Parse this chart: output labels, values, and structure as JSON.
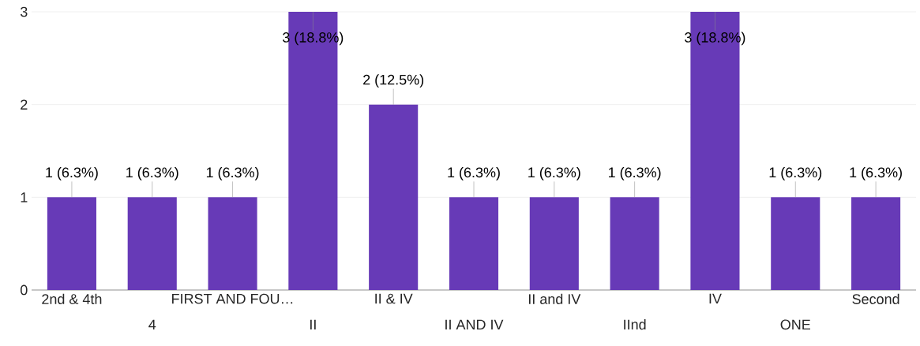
{
  "chart_data": {
    "type": "bar",
    "categories": [
      "2nd & 4th",
      "4",
      "FIRST AND FOU…",
      "II",
      "II & IV",
      "II AND IV",
      "II and IV",
      "IInd",
      "IV",
      "ONE",
      "Second"
    ],
    "values": [
      1,
      1,
      1,
      3,
      2,
      1,
      1,
      1,
      3,
      1,
      1
    ],
    "value_labels": [
      "1 (6.3%)",
      "1 (6.3%)",
      "1 (6.3%)",
      "3 (18.8%)",
      "2 (12.5%)",
      "1 (6.3%)",
      "1 (6.3%)",
      "1 (6.3%)",
      "3 (18.8%)",
      "1 (6.3%)",
      "1 (6.3%)"
    ],
    "color": "#673ab7",
    "ylim": [
      0,
      3
    ],
    "yticks": [
      0,
      1,
      2,
      3
    ],
    "grid": "y"
  }
}
